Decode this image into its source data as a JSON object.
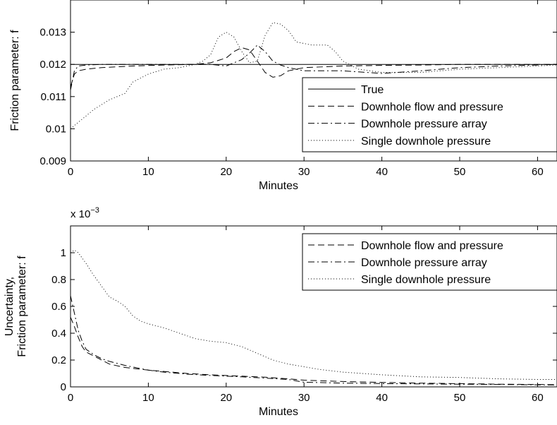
{
  "chart_data": [
    {
      "type": "line",
      "xlabel": "Minutes",
      "ylabel": "Friction parameter: f",
      "xlim": [
        0,
        62.5
      ],
      "ylim": [
        0.009,
        0.014
      ],
      "xticks": [
        0,
        10,
        20,
        30,
        40,
        50,
        60
      ],
      "yticks": [
        0.009,
        0.01,
        0.011,
        0.012,
        0.013
      ],
      "ytick_labels": [
        "0.009",
        "0.01",
        "0.011",
        "0.012",
        "0.013"
      ],
      "legend_position": "lower-right",
      "series": [
        {
          "name": "True",
          "style": "solid",
          "x": [
            0,
            62.5
          ],
          "y": [
            0.012,
            0.012
          ]
        },
        {
          "name": "Downhole flow and pressure",
          "style": "dashed",
          "x": [
            0,
            0.5,
            1,
            2,
            4,
            8,
            12,
            16,
            18,
            20,
            21,
            22,
            23,
            24,
            25,
            26,
            27,
            28,
            30,
            35,
            40,
            45,
            50,
            55,
            60,
            62.5
          ],
          "y": [
            0.0113,
            0.0117,
            0.0118,
            0.01185,
            0.0119,
            0.01195,
            0.01198,
            0.012,
            0.01205,
            0.0122,
            0.0124,
            0.01252,
            0.01245,
            0.0121,
            0.01175,
            0.0116,
            0.01165,
            0.0118,
            0.0119,
            0.01195,
            0.01197,
            0.01198,
            0.012,
            0.012,
            0.012,
            0.012
          ]
        },
        {
          "name": "Downhole pressure array",
          "style": "dashdot",
          "x": [
            0,
            0.5,
            1,
            2,
            4,
            8,
            12,
            16,
            18,
            20,
            22,
            23,
            24,
            25,
            26,
            27,
            28,
            30,
            35,
            40,
            45,
            50,
            55,
            60,
            62.5
          ],
          "y": [
            0.0112,
            0.0118,
            0.01195,
            0.01198,
            0.012,
            0.012,
            0.012,
            0.012,
            0.012,
            0.01195,
            0.01215,
            0.01235,
            0.0126,
            0.0124,
            0.0121,
            0.01198,
            0.0119,
            0.0118,
            0.0118,
            0.01172,
            0.0118,
            0.0119,
            0.01195,
            0.01198,
            0.012
          ]
        },
        {
          "name": "Single downhole pressure",
          "style": "dotted",
          "x": [
            0,
            1,
            2,
            3,
            5,
            7,
            8,
            10,
            12,
            14,
            16,
            17,
            18,
            19,
            20,
            21,
            22,
            23,
            24,
            25,
            26,
            27,
            28,
            29,
            30,
            31,
            32,
            33,
            34,
            35,
            37,
            40,
            45,
            50,
            55,
            60,
            62.5
          ],
          "y": [
            0.01,
            0.0102,
            0.0104,
            0.0106,
            0.0109,
            0.0111,
            0.01145,
            0.0117,
            0.01185,
            0.0119,
            0.012,
            0.0121,
            0.0123,
            0.01285,
            0.013,
            0.01285,
            0.0124,
            0.01205,
            0.0121,
            0.0129,
            0.0133,
            0.01325,
            0.01305,
            0.0127,
            0.01265,
            0.0126,
            0.0126,
            0.0126,
            0.0124,
            0.0121,
            0.01185,
            0.01175,
            0.01175,
            0.01185,
            0.0119,
            0.01195,
            0.01198
          ]
        }
      ]
    },
    {
      "type": "line",
      "xlabel": "Minutes",
      "ylabel": [
        "Uncertainty,",
        "Friction parameter: f"
      ],
      "exponent_label": "x 10",
      "exponent": "−3",
      "xlim": [
        0,
        62.5
      ],
      "ylim": [
        0,
        1.2
      ],
      "xticks": [
        0,
        10,
        20,
        30,
        40,
        50,
        60
      ],
      "yticks": [
        0,
        0.2,
        0.4,
        0.6,
        0.8,
        1
      ],
      "ytick_labels": [
        "0",
        "0.2",
        "0.4",
        "0.6",
        "0.8",
        "1"
      ],
      "legend_position": "upper-right",
      "series": [
        {
          "name": "Downhole flow and pressure",
          "style": "dashed",
          "x": [
            0,
            0.5,
            1,
            1.5,
            2,
            3,
            4,
            5,
            7,
            10,
            12,
            15,
            18,
            20,
            22,
            25,
            28,
            30,
            35,
            40,
            45,
            50,
            55,
            60,
            62.5
          ],
          "y": [
            0.52,
            0.45,
            0.37,
            0.3,
            0.26,
            0.23,
            0.2,
            0.17,
            0.145,
            0.125,
            0.115,
            0.1,
            0.09,
            0.085,
            0.08,
            0.072,
            0.06,
            0.05,
            0.04,
            0.033,
            0.028,
            0.024,
            0.02,
            0.018,
            0.017
          ]
        },
        {
          "name": "Downhole pressure array",
          "style": "dashdot",
          "x": [
            0,
            0.5,
            1,
            1.5,
            2,
            3,
            4,
            5,
            7,
            10,
            12,
            15,
            18,
            20,
            22,
            25,
            28,
            30,
            35,
            40,
            45,
            50,
            55,
            60,
            62.5
          ],
          "y": [
            0.68,
            0.55,
            0.42,
            0.34,
            0.28,
            0.24,
            0.21,
            0.19,
            0.16,
            0.125,
            0.11,
            0.095,
            0.085,
            0.08,
            0.075,
            0.065,
            0.055,
            0.035,
            0.028,
            0.025,
            0.022,
            0.02,
            0.018,
            0.015,
            0.014
          ]
        },
        {
          "name": "Single downhole pressure",
          "style": "dotted",
          "x": [
            0,
            0.5,
            1,
            2,
            3,
            4,
            5,
            6,
            7,
            8,
            9,
            10,
            12,
            14,
            16,
            18,
            20,
            22,
            24,
            26,
            28,
            30,
            32,
            35,
            40,
            45,
            50,
            55,
            60,
            62.5
          ],
          "y": [
            1.0,
            1.02,
            1.0,
            0.92,
            0.83,
            0.75,
            0.67,
            0.64,
            0.6,
            0.53,
            0.49,
            0.47,
            0.44,
            0.4,
            0.36,
            0.34,
            0.33,
            0.3,
            0.25,
            0.2,
            0.17,
            0.15,
            0.13,
            0.11,
            0.09,
            0.075,
            0.07,
            0.06,
            0.055,
            0.055
          ]
        }
      ]
    }
  ]
}
